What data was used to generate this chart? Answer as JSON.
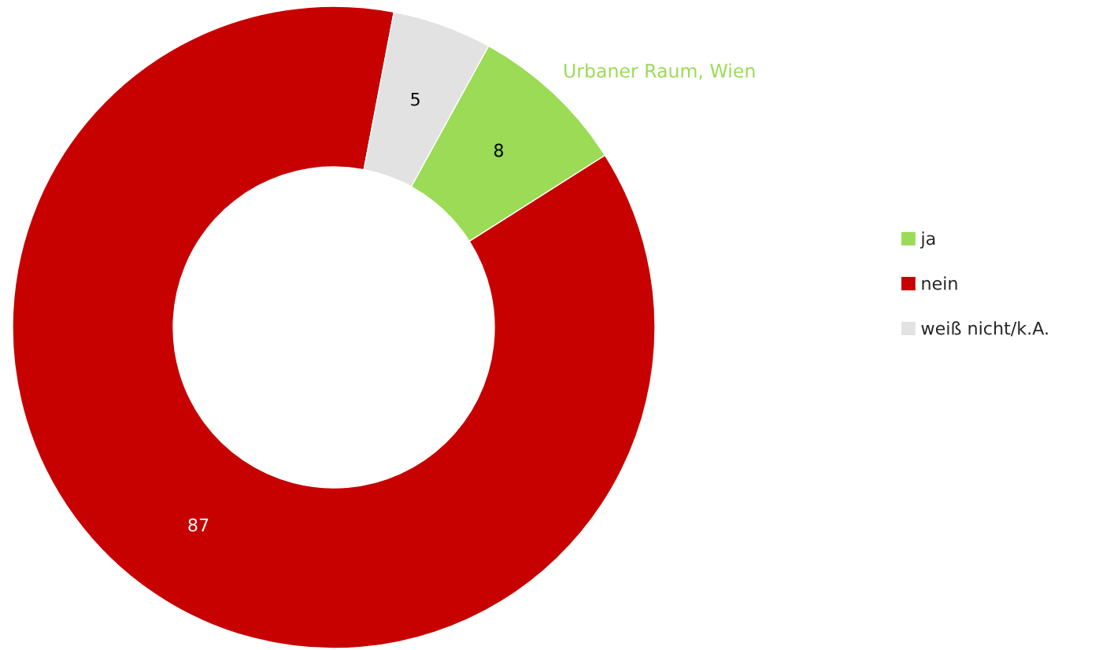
{
  "chart_data": {
    "type": "donut",
    "title": "Urbaner Raum, Wien",
    "categories": [
      "ja",
      "nein",
      "weiß nicht/k.A."
    ],
    "values": [
      8,
      87,
      5
    ],
    "colors": [
      "#9bdb55",
      "#c70000",
      "#e2e2e2"
    ],
    "data_labels": true,
    "legend": "right"
  }
}
